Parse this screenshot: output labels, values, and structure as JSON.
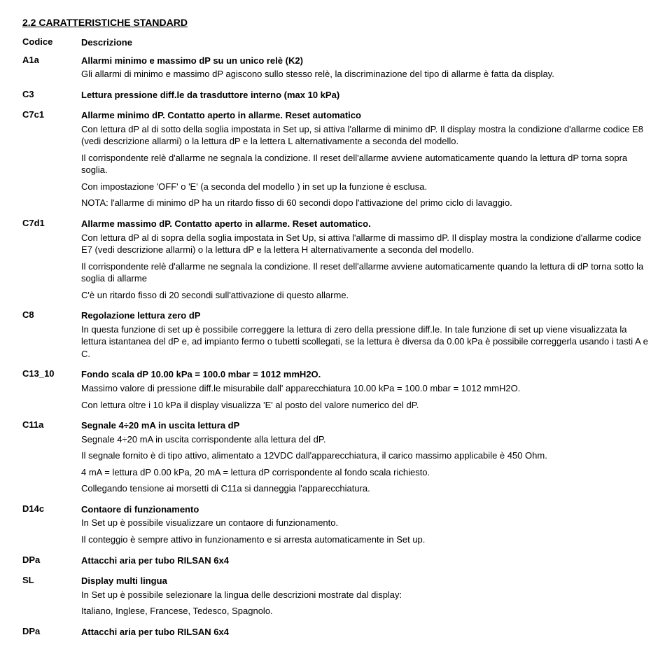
{
  "section_title": "2.2 CARATTERISTICHE STANDARD",
  "header": {
    "code": "Codice",
    "desc": "Descrizione"
  },
  "rows": [
    {
      "code": "A1a",
      "title": "Allarmi minimo e massimo dP su un unico relè (K2)",
      "paras": [
        "Gli allarmi di minimo e massimo dP agiscono sullo stesso relè, la discriminazione del tipo di allarme è fatta da display."
      ]
    },
    {
      "code": "C3",
      "title": "Lettura pressione diff.le da trasduttore interno (max 10 kPa)",
      "paras": []
    },
    {
      "code": "C7c1",
      "title": "Allarme minimo dP. Contatto aperto in allarme. Reset automatico",
      "paras": [
        "Con lettura dP al di sotto della soglia impostata in Set up, si attiva l'allarme di minimo dP. Il display mostra la condizione d'allarme codice E8 (vedi descrizione allarmi) o la lettura dP e la lettera L alternativamente a seconda del modello.",
        "Il corrispondente relè d'allarme ne segnala la condizione. Il reset dell'allarme avviene automaticamente quando la lettura dP torna sopra soglia.",
        "Con impostazione 'OFF' o 'E' (a seconda del modello ) in set up la funzione è esclusa.",
        "NOTA: l'allarme di minimo dP ha un ritardo fisso di 60 secondi dopo l'attivazione del primo ciclo di lavaggio."
      ]
    },
    {
      "code": "C7d1",
      "title": "Allarme massimo dP. Contatto aperto in allarme. Reset automatico.",
      "paras": [
        "Con lettura dP al di sopra della soglia impostata in Set Up, si attiva l'allarme di massimo dP. Il display mostra la condizione d'allarme codice E7 (vedi descrizione allarmi) o la lettura dP e la lettera H alternativamente a seconda del modello.",
        "Il corrispondente relè d'allarme ne segnala la condizione. Il reset dell'allarme avviene automaticamente quando la lettura di dP torna sotto la soglia di allarme",
        "C'è un ritardo fisso di 20 secondi sull'attivazione di questo allarme."
      ]
    },
    {
      "code": "C8",
      "title": "Regolazione lettura zero dP",
      "paras": [
        "In questa funzione di set up è possibile correggere la lettura di zero della pressione diff.le. In tale funzione di set up viene visualizzata la lettura istantanea del dP e, ad impianto fermo o tubetti scollegati, se la lettura è diversa da 0.00 kPa è possibile correggerla usando i tasti A e C."
      ]
    },
    {
      "code": "C13_10",
      "title": "Fondo scala dP 10.00 kPa = 100.0 mbar = 1012 mmH2O.",
      "paras": [
        "Massimo valore di pressione diff.le misurabile dall' apparecchiatura 10.00 kPa = 100.0 mbar = 1012 mmH2O.",
        "Con lettura oltre i 10 kPa il display visualizza 'E' al posto del valore numerico del dP."
      ]
    },
    {
      "code": "C11a",
      "title": "Segnale 4÷20 mA in uscita lettura dP",
      "paras": [
        "Segnale 4÷20 mA in uscita corrispondente alla lettura del dP.",
        "Il segnale fornito è di tipo attivo, alimentato a 12VDC dall'apparecchiatura, il carico massimo applicabile è 450 Ohm.",
        "4 mA = lettura dP 0.00 kPa, 20 mA = lettura dP corrispondente al fondo scala richiesto.",
        "Collegando tensione ai morsetti di C11a si danneggia l'apparecchiatura."
      ]
    },
    {
      "code": "D14c",
      "title": "Contaore di funzionamento",
      "paras": [
        "In Set up è possibile visualizzare un contaore di funzionamento.",
        "Il conteggio è sempre attivo in funzionamento e si arresta automaticamente in Set up."
      ]
    },
    {
      "code": "DPa",
      "title": "Attacchi aria per tubo RILSAN 6x4",
      "paras": []
    },
    {
      "code": "SL",
      "title": "Display multi lingua",
      "paras": [
        "In Set up è possibile selezionare la lingua delle descrizioni mostrate dal display:",
        "Italiano, Inglese, Francese, Tedesco, Spagnolo."
      ]
    },
    {
      "code": "DPa",
      "title": "Attacchi aria per tubo RILSAN 6x4",
      "paras": []
    }
  ]
}
